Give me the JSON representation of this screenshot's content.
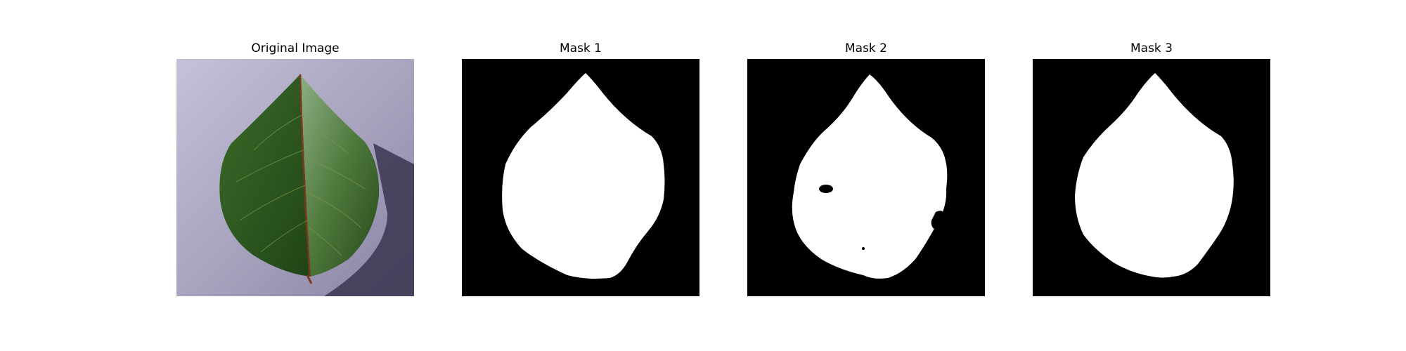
{
  "panels": [
    {
      "title": "Original Image"
    },
    {
      "title": "Mask 1"
    },
    {
      "title": "Mask 2"
    },
    {
      "title": "Mask 3"
    }
  ],
  "colors": {
    "background": "#ffffff",
    "mask_background": "#000000",
    "mask_foreground": "#ffffff",
    "leaf_green": "#2f5a22",
    "paper_lavender": "#a9a4bf"
  }
}
